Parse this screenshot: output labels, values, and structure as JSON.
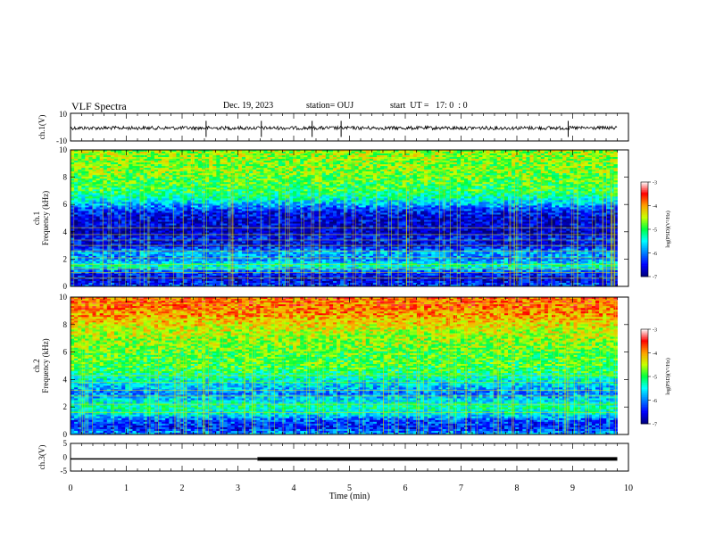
{
  "header": {
    "title": "VLF Spectra",
    "date": "Dec. 19, 2023",
    "station": "station= OUJ",
    "start": "start  UT =   17: 0  : 0"
  },
  "colors": {
    "spectrogram_scale": [
      "#00007a",
      "#0000ff",
      "#0080ff",
      "#00ffff",
      "#00ff40",
      "#c8ff00",
      "#ffa000",
      "#ff0000",
      "#ffffff"
    ],
    "trace": "#000000"
  },
  "chart_data": [
    {
      "type": "line",
      "name": "ch1-waveform",
      "ylabel": "ch.1(V)",
      "ylim": [
        -10,
        10
      ],
      "yticks": [
        "10",
        "-10"
      ],
      "baseline": 0,
      "x": [
        0,
        10
      ],
      "spikes_min": [
        2.43,
        3.42,
        4.33,
        4.85,
        8.92
      ],
      "description_values": "noisy trace near 0 V with occasional spikes"
    },
    {
      "type": "heatmap",
      "name": "ch1-spectrogram",
      "ylabel": "ch.1\nFrequency (kHz)",
      "ylim": [
        0,
        10
      ],
      "yticks": [
        "0",
        "2",
        "4",
        "6",
        "8",
        "10"
      ],
      "xlim": [
        0,
        9.8
      ],
      "colorbar": {
        "label": "log(PSD)(V²/Hz)",
        "range": [
          -7,
          -3
        ],
        "ticks": [
          "-3",
          "-4",
          "-5",
          "-6",
          "-7"
        ]
      },
      "profile_freq_khz": [
        0,
        0.5,
        1.0,
        1.5,
        2.0,
        2.5,
        3.0,
        3.5,
        4.0,
        4.5,
        5.0,
        5.5,
        6.0,
        6.5,
        7.0,
        7.5,
        8.0,
        8.5,
        9.0,
        9.5,
        10.0
      ],
      "profile_log_psd": [
        -6.2,
        -6.6,
        -6.3,
        -5.3,
        -6.0,
        -5.8,
        -6.6,
        -6.4,
        -6.8,
        -6.6,
        -6.6,
        -6.4,
        -5.8,
        -5.3,
        -5.0,
        -4.9,
        -4.8,
        -4.7,
        -4.7,
        -4.6,
        -4.6
      ]
    },
    {
      "type": "heatmap",
      "name": "ch2-spectrogram",
      "ylabel": "ch.2\nFrequency (kHz)",
      "ylim": [
        0,
        10
      ],
      "yticks": [
        "0",
        "2",
        "4",
        "6",
        "8",
        "10"
      ],
      "xlim": [
        0,
        9.8
      ],
      "colorbar": {
        "label": "log(PSD)(V²/Hz)",
        "range": [
          -7,
          -3
        ],
        "ticks": [
          "-3",
          "-4",
          "-5",
          "-6",
          "-7"
        ]
      },
      "profile_freq_khz": [
        0,
        0.5,
        1.0,
        1.5,
        2.0,
        2.5,
        3.0,
        3.5,
        4.0,
        4.5,
        5.0,
        5.5,
        6.0,
        6.5,
        7.0,
        7.5,
        8.0,
        8.5,
        9.0,
        9.5,
        10.0
      ],
      "profile_log_psd": [
        -5.8,
        -6.4,
        -6.2,
        -5.5,
        -5.2,
        -5.6,
        -6.0,
        -5.7,
        -5.4,
        -5.1,
        -4.9,
        -4.9,
        -4.8,
        -4.7,
        -4.6,
        -4.5,
        -4.3,
        -4.1,
        -3.9,
        -3.8,
        -3.8
      ]
    },
    {
      "type": "line",
      "name": "ch3-trace",
      "ylabel": "ch.3(V)",
      "ylim": [
        -5,
        5
      ],
      "yticks": [
        "5",
        "0",
        "-5"
      ],
      "x": [
        0,
        3.35,
        3.35,
        9.8
      ],
      "y": [
        -0.6,
        -0.6,
        -0.6,
        -0.6
      ],
      "thick_from_min": 3.35
    }
  ],
  "x_axis": {
    "label": "Time (min)",
    "ticks": [
      "0",
      "1",
      "2",
      "3",
      "4",
      "5",
      "6",
      "7",
      "8",
      "9",
      "10"
    ],
    "range": [
      0,
      10
    ]
  }
}
